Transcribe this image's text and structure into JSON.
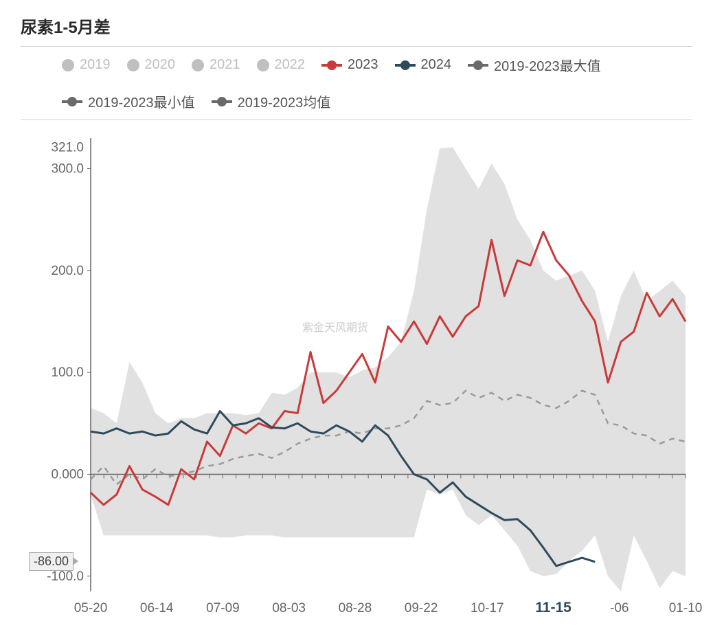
{
  "title": "尿素1-5月差",
  "watermark": "紫金天风期货",
  "legend": [
    {
      "label": "2019",
      "type": "circle",
      "color": "#bfbfbf",
      "active": false
    },
    {
      "label": "2020",
      "type": "circle",
      "color": "#bfbfbf",
      "active": false
    },
    {
      "label": "2021",
      "type": "circle",
      "color": "#bfbfbf",
      "active": false
    },
    {
      "label": "2022",
      "type": "circle",
      "color": "#bfbfbf",
      "active": false
    },
    {
      "label": "2023",
      "type": "line-dot",
      "color": "#c93a3a",
      "active": true
    },
    {
      "label": "2024",
      "type": "line-dot",
      "color": "#2e4a5c",
      "active": true
    },
    {
      "label": "2019-2023最大值",
      "type": "line-dot",
      "color": "#6a6a6a",
      "active": true
    },
    {
      "label": "2019-2023最小值",
      "type": "line-dot",
      "color": "#6a6a6a",
      "active": true
    },
    {
      "label": "2019-2023均值",
      "type": "line-dot",
      "color": "#6a6a6a",
      "active": true
    }
  ],
  "chart": {
    "type": "line",
    "x_labels": [
      "05-20",
      "06-14",
      "07-09",
      "08-03",
      "08-28",
      "09-22",
      "10-17",
      "11-15",
      "-06",
      "01-10"
    ],
    "x_highlight_index": 7,
    "x_highlight_color": "#2e4a5c",
    "y_top_label": "321.0",
    "y_ticks": [
      -100,
      0,
      100,
      200,
      300
    ],
    "y_tick_labels": [
      "-100.0",
      "0.000",
      "100.0",
      "200.0",
      "300.0"
    ],
    "ylim": [
      -115,
      330
    ],
    "xlim": [
      0,
      230
    ],
    "y_badge_value": "-86.00",
    "y_badge_at": -86,
    "background_color": "#ffffff",
    "axis_color": "#666",
    "tick_color": "#666",
    "tick_fontsize": 19,
    "band_fill": "#dcdcdc",
    "band_opacity": 0.85,
    "series": {
      "max": {
        "color": "#dcdcdc",
        "type": "area-upper"
      },
      "min": {
        "color": "#dcdcdc",
        "type": "area-lower"
      },
      "mean": {
        "color": "#9a9a9a",
        "width": 2.5,
        "dash": "8,7"
      },
      "s2023": {
        "color": "#c93a3a",
        "width": 3
      },
      "s2024": {
        "color": "#2e4a5c",
        "width": 3
      }
    },
    "data": {
      "x": [
        0,
        5,
        10,
        15,
        20,
        25,
        30,
        35,
        40,
        45,
        50,
        55,
        60,
        65,
        70,
        75,
        80,
        85,
        90,
        95,
        100,
        105,
        110,
        115,
        120,
        125,
        130,
        135,
        140,
        145,
        150,
        155,
        160,
        165,
        170,
        175,
        180,
        185,
        190,
        195,
        200,
        205,
        210,
        215,
        220,
        225,
        230
      ],
      "max": [
        65,
        60,
        50,
        110,
        90,
        60,
        50,
        55,
        55,
        60,
        60,
        60,
        58,
        60,
        80,
        78,
        85,
        100,
        100,
        100,
        95,
        102,
        105,
        115,
        130,
        180,
        260,
        320,
        321,
        300,
        280,
        305,
        285,
        250,
        230,
        200,
        190,
        195,
        200,
        180,
        130,
        175,
        200,
        170,
        180,
        190,
        175
      ],
      "min": [
        -20,
        -60,
        -60,
        -60,
        -60,
        -60,
        -60,
        -60,
        -60,
        -60,
        -62,
        -62,
        -60,
        -60,
        -60,
        -62,
        -62,
        -62,
        -62,
        -62,
        -62,
        -62,
        -62,
        -62,
        -62,
        -62,
        -15,
        -20,
        -15,
        -40,
        -50,
        -40,
        -55,
        -70,
        -95,
        -100,
        -98,
        -85,
        -75,
        -60,
        -100,
        -115,
        -60,
        -85,
        -112,
        -95,
        -100
      ],
      "mean": [
        -5,
        8,
        -10,
        0,
        -5,
        5,
        -2,
        0,
        3,
        8,
        10,
        15,
        18,
        20,
        16,
        22,
        30,
        35,
        38,
        38,
        42,
        40,
        45,
        45,
        48,
        55,
        72,
        68,
        70,
        82,
        75,
        80,
        72,
        78,
        75,
        68,
        65,
        72,
        82,
        78,
        50,
        48,
        40,
        38,
        30,
        35,
        32
      ],
      "s2023": [
        -18,
        -30,
        -20,
        8,
        -15,
        -22,
        -30,
        5,
        -5,
        32,
        18,
        48,
        40,
        50,
        45,
        62,
        60,
        120,
        70,
        82,
        100,
        118,
        90,
        145,
        130,
        150,
        128,
        155,
        135,
        155,
        165,
        230,
        175,
        210,
        205,
        238,
        210,
        195,
        170,
        150,
        90,
        130,
        140,
        178,
        155,
        172,
        150
      ],
      "s2024": [
        42,
        40,
        45,
        40,
        42,
        38,
        40,
        52,
        44,
        40,
        62,
        48,
        50,
        55,
        46,
        45,
        50,
        42,
        40,
        48,
        42,
        32,
        48,
        38,
        18,
        0,
        -5,
        -18,
        -8,
        -22,
        -30,
        -38,
        -45,
        -44,
        -55,
        -72,
        -90,
        -86,
        -82,
        -86
      ]
    }
  }
}
